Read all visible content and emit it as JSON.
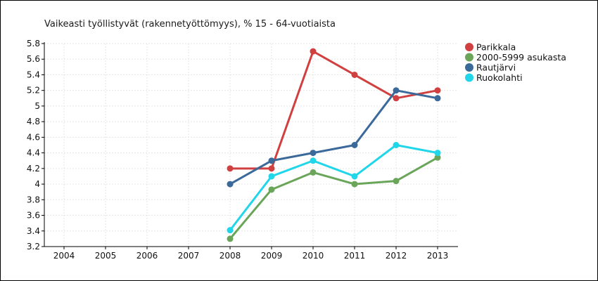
{
  "chart_data": {
    "type": "line",
    "title": "Vaikeasti työllistyvät (rakennetyöttömyys), % 15 - 64-vuotiaista",
    "xlabel": "",
    "ylabel": "",
    "x": [
      "2004",
      "2005",
      "2006",
      "2007",
      "2008",
      "2009",
      "2010",
      "2011",
      "2012",
      "2013"
    ],
    "y_ticks": [
      "3.2",
      "3.4",
      "3.6",
      "3.8",
      "4",
      "4.2",
      "4.4",
      "4.6",
      "4.8",
      "5",
      "5.2",
      "5.4",
      "5.6",
      "5.8"
    ],
    "ylim": [
      3.2,
      5.8
    ],
    "grid": true,
    "legend_position": "right",
    "series": [
      {
        "name": "Parikkala",
        "color": "#d04040",
        "values": [
          null,
          null,
          null,
          null,
          4.2,
          4.2,
          5.7,
          5.4,
          5.1,
          5.2
        ]
      },
      {
        "name": "2000-5999 asukasta",
        "color": "#6aa55a",
        "values": [
          null,
          null,
          null,
          null,
          3.3,
          3.93,
          4.15,
          4.0,
          4.04,
          4.34
        ]
      },
      {
        "name": "Rautjärvi",
        "color": "#3b6a9a",
        "values": [
          null,
          null,
          null,
          null,
          4.0,
          4.3,
          4.4,
          4.5,
          5.2,
          5.1
        ]
      },
      {
        "name": "Ruokolahti",
        "color": "#22d6ea",
        "values": [
          null,
          null,
          null,
          null,
          3.41,
          4.1,
          4.3,
          4.1,
          4.5,
          4.4
        ]
      }
    ]
  }
}
